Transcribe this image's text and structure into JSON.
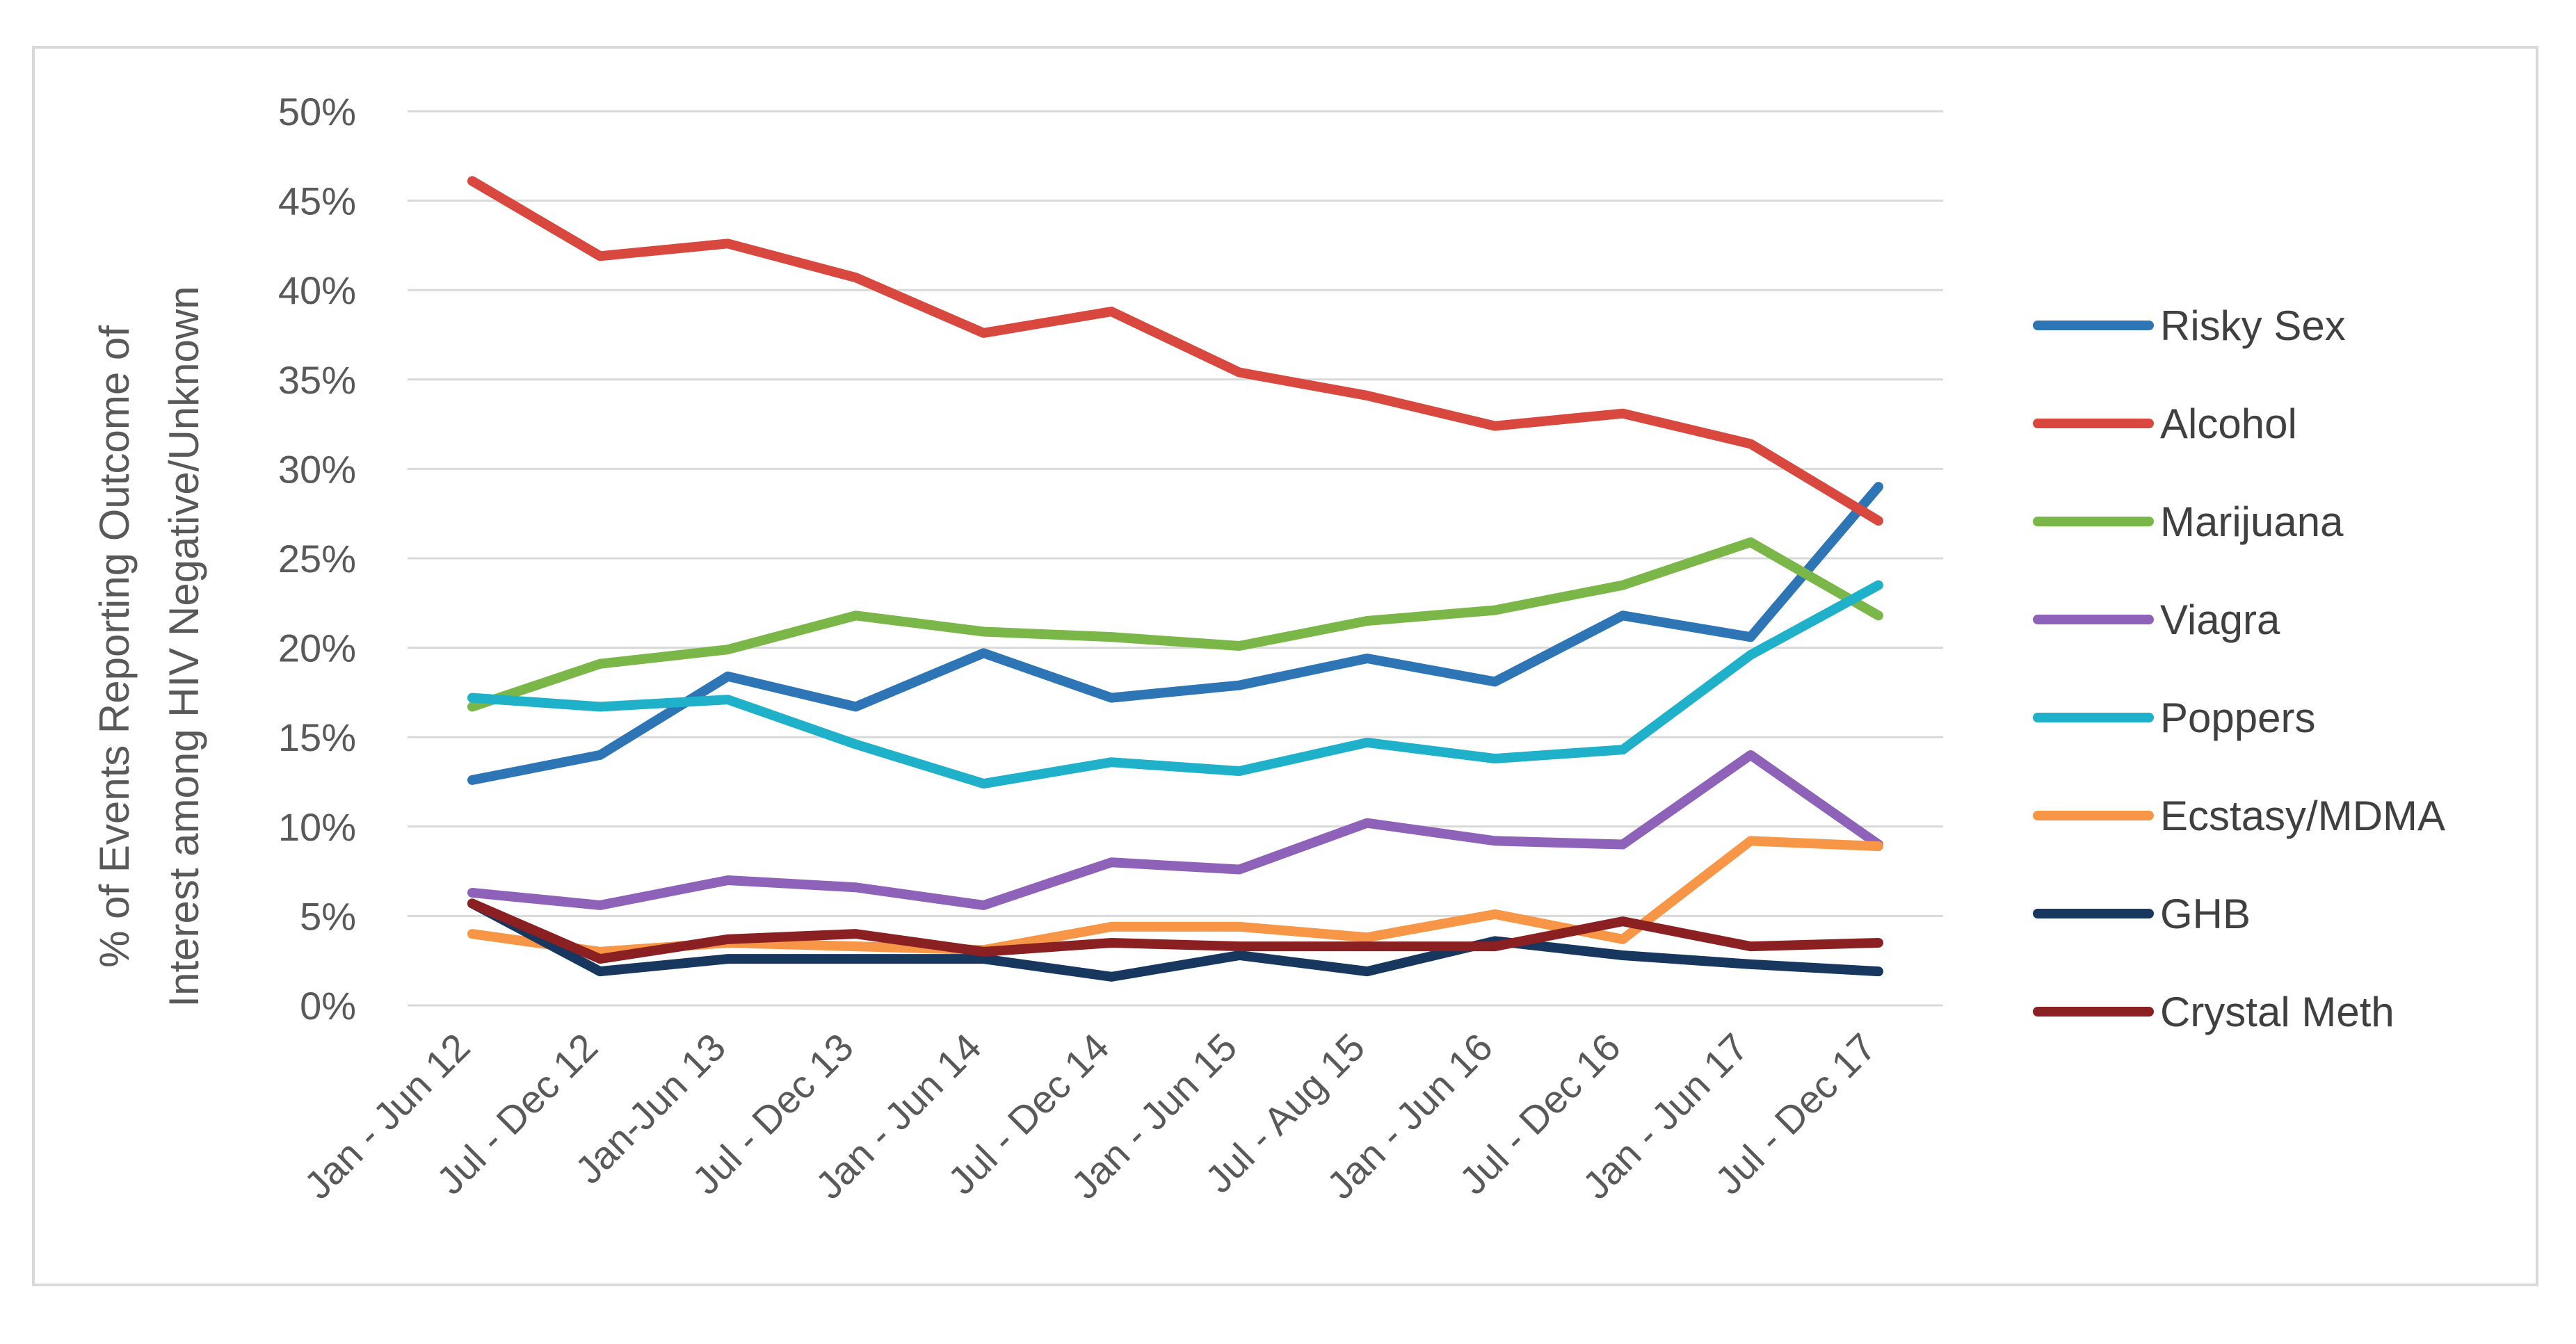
{
  "chart_data": {
    "type": "line",
    "title": "",
    "xlabel": "",
    "ylabel": "% of Events Reporting Outcome of Interest among HIV Negative/Unknown",
    "ylabel_lines": [
      "% of Events Reporting Outcome of",
      "Interest among HIV Negative/Unknown"
    ],
    "ylim": [
      0,
      50
    ],
    "y_ticks": [
      0,
      5,
      10,
      15,
      20,
      25,
      30,
      35,
      40,
      45,
      50
    ],
    "y_tick_labels": [
      "0%",
      "5%",
      "10%",
      "15%",
      "20%",
      "25%",
      "30%",
      "35%",
      "40%",
      "45%",
      "50%"
    ],
    "grid": true,
    "legend_position": "right",
    "categories": [
      "Jan - Jun 12",
      "Jul - Dec 12",
      "Jan-Jun 13",
      "Jul - Dec 13",
      "Jan - Jun 14",
      "Jul - Dec 14",
      "Jan - Jun 15",
      "Jul - Aug 15",
      "Jan - Jun 16",
      "Jul - Dec 16",
      "Jan - Jun 17",
      "Jul - Dec 17"
    ],
    "series": [
      {
        "name": "Risky Sex",
        "color": "#2E75B6",
        "values": [
          12.6,
          14.0,
          18.4,
          16.7,
          19.7,
          17.2,
          17.9,
          19.4,
          18.1,
          21.8,
          20.6,
          29.0
        ]
      },
      {
        "name": "Alcohol",
        "color": "#D9483E",
        "values": [
          46.1,
          41.9,
          42.6,
          40.7,
          37.6,
          38.8,
          35.4,
          34.1,
          32.4,
          33.1,
          31.4,
          27.1
        ]
      },
      {
        "name": "Marijuana",
        "color": "#7AB648",
        "values": [
          16.7,
          19.1,
          19.9,
          21.8,
          20.9,
          20.6,
          20.1,
          21.5,
          22.1,
          23.5,
          25.9,
          21.8
        ]
      },
      {
        "name": "Viagra",
        "color": "#8E62B8",
        "values": [
          6.3,
          5.6,
          7.0,
          6.6,
          5.6,
          8.0,
          7.6,
          10.2,
          9.2,
          9.0,
          14.0,
          9.0
        ]
      },
      {
        "name": "Poppers",
        "color": "#1FB1C9",
        "values": [
          17.2,
          16.7,
          17.1,
          14.6,
          12.4,
          13.6,
          13.1,
          14.7,
          13.8,
          14.3,
          19.6,
          23.5
        ]
      },
      {
        "name": "Ecstasy/MDMA",
        "color": "#F79646",
        "values": [
          4.0,
          3.0,
          3.5,
          3.3,
          3.1,
          4.4,
          4.4,
          3.8,
          5.1,
          3.7,
          9.2,
          8.9
        ]
      },
      {
        "name": "GHB",
        "color": "#17375E",
        "values": [
          5.7,
          1.9,
          2.6,
          2.6,
          2.6,
          1.6,
          2.8,
          1.9,
          3.6,
          2.8,
          2.3,
          1.9
        ]
      },
      {
        "name": "Crystal Meth",
        "color": "#8B2022",
        "values": [
          5.7,
          2.6,
          3.7,
          4.0,
          3.0,
          3.5,
          3.3,
          3.3,
          3.3,
          4.7,
          3.3,
          3.5
        ]
      }
    ]
  },
  "colors": {
    "grid": "#D9D9D9",
    "frame": "#D9D9D9",
    "text": "#595959"
  }
}
